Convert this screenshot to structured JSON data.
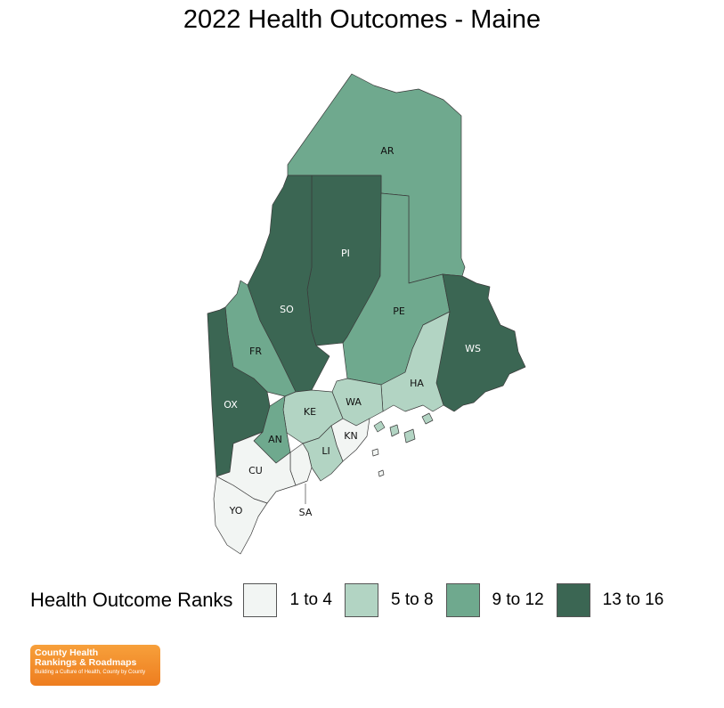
{
  "title": "2022 Health Outcomes - Maine",
  "legend": {
    "title": "Health Outcome Ranks",
    "items": [
      {
        "label": "1 to 4",
        "color": "#f2f5f3"
      },
      {
        "label": "5 to 8",
        "color": "#b2d4c3"
      },
      {
        "label": "9 to 12",
        "color": "#6fa98e"
      },
      {
        "label": "13 to 16",
        "color": "#3b6653"
      }
    ]
  },
  "counties": {
    "AR": {
      "label": "AR",
      "rank_band": "9 to 12"
    },
    "PI": {
      "label": "PI",
      "rank_band": "13 to 16"
    },
    "SO": {
      "label": "SO",
      "rank_band": "13 to 16"
    },
    "PE": {
      "label": "PE",
      "rank_band": "9 to 12"
    },
    "WS": {
      "label": "WS",
      "rank_band": "13 to 16"
    },
    "FR": {
      "label": "FR",
      "rank_band": "9 to 12"
    },
    "OX": {
      "label": "OX",
      "rank_band": "13 to 16"
    },
    "HA": {
      "label": "HA",
      "rank_band": "5 to 8"
    },
    "WA": {
      "label": "WA",
      "rank_band": "5 to 8"
    },
    "KE": {
      "label": "KE",
      "rank_band": "5 to 8"
    },
    "AN": {
      "label": "AN",
      "rank_band": "9 to 12"
    },
    "KN": {
      "label": "KN",
      "rank_band": "1 to 4"
    },
    "LI": {
      "label": "LI",
      "rank_band": "5 to 8"
    },
    "CU": {
      "label": "CU",
      "rank_band": "1 to 4"
    },
    "SA": {
      "label": "SA",
      "rank_band": "1 to 4"
    },
    "YO": {
      "label": "YO",
      "rank_band": "1 to 4"
    }
  },
  "logo": {
    "line1": "County Health",
    "line2": "Rankings & Roadmaps",
    "line3": "Building a Culture of Health, County by County"
  }
}
